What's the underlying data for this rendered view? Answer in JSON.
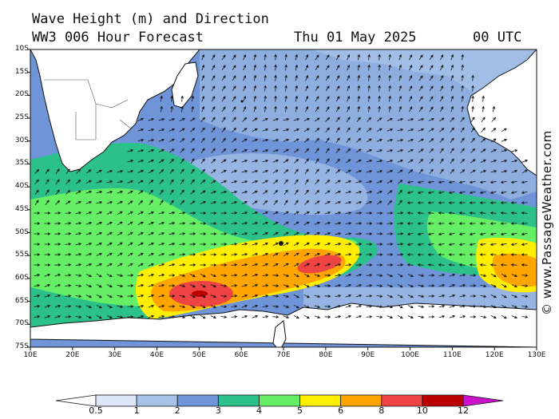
{
  "header": {
    "title_line1": "Wave Height (m) and Direction",
    "title_line2": "WW3 006 Hour Forecast",
    "date": "Thu 01 May 2025",
    "time": "00 UTC"
  },
  "credit": "© www.PassageWeather.com",
  "map": {
    "lat_labels": [
      "10S",
      "15S",
      "20S",
      "25S",
      "30S",
      "35S",
      "40S",
      "45S",
      "50S",
      "55S",
      "60S",
      "65S",
      "70S",
      "75S"
    ],
    "lon_labels": [
      "10E",
      "20E",
      "30E",
      "40E",
      "50E",
      "60E",
      "70E",
      "80E",
      "90E",
      "100E",
      "110E",
      "120E",
      "130E"
    ],
    "land_color": "#ffffff",
    "ice_color": "#f8fafd"
  },
  "legend": {
    "labels": [
      "0.5",
      "1",
      "2",
      "3",
      "4",
      "5",
      "6",
      "8",
      "10",
      "12"
    ],
    "colors": [
      "#ffffff",
      "#dde7f7",
      "#a8c2e7",
      "#6f94d8",
      "#2cc08a",
      "#66ee66",
      "#ffee00",
      "#ffa500",
      "#ee4444",
      "#bb0000",
      "#cc11cc"
    ]
  }
}
